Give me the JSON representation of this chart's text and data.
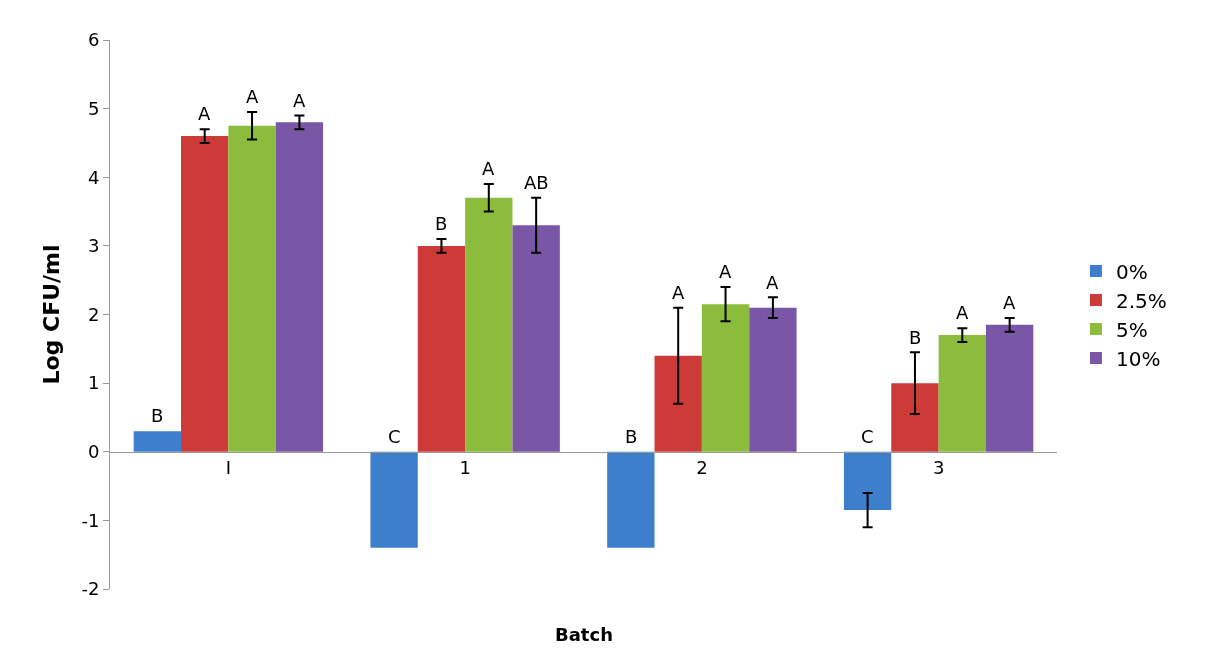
{
  "chart_data": {
    "type": "bar",
    "xlabel": "Batch",
    "ylabel": "Log CFU/ml",
    "categories": [
      "I",
      "1",
      "2",
      "3"
    ],
    "series": [
      {
        "name": "0%",
        "color": "#3d7fcc",
        "values": [
          0.3,
          -1.4,
          -1.4,
          -0.85
        ],
        "errors": [
          null,
          null,
          null,
          0.25
        ],
        "value_labels": [
          "B",
          "C",
          "B",
          "C"
        ]
      },
      {
        "name": "2.5%",
        "color": "#cc3b38",
        "values": [
          4.6,
          3.0,
          1.4,
          1.0
        ],
        "errors": [
          0.1,
          0.1,
          0.7,
          0.45
        ],
        "value_labels": [
          "A",
          "B",
          "A",
          "B"
        ]
      },
      {
        "name": "5%",
        "color": "#8cbc3c",
        "values": [
          4.75,
          3.7,
          2.15,
          1.7
        ],
        "errors": [
          0.2,
          0.2,
          0.25,
          0.1
        ],
        "value_labels": [
          "A",
          "A",
          "A",
          "A"
        ]
      },
      {
        "name": "10%",
        "color": "#7a56a6",
        "values": [
          4.8,
          3.3,
          2.1,
          1.85
        ],
        "errors": [
          0.1,
          0.4,
          0.15,
          0.1
        ],
        "value_labels": [
          "A",
          "AB",
          "A",
          "A"
        ]
      }
    ],
    "ylim": [
      -2,
      6
    ],
    "yticks": [
      -2,
      -1,
      0,
      1,
      2,
      3,
      4,
      5,
      6
    ],
    "legend": "right"
  }
}
